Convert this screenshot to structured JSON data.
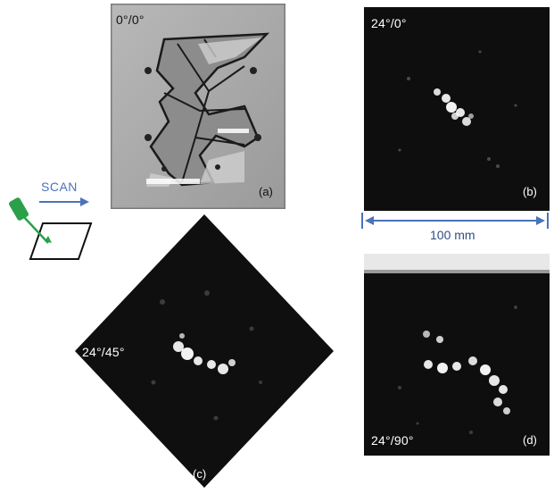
{
  "panels": {
    "a": {
      "angle_label": "0°/0°",
      "sub_label": "(a)"
    },
    "b": {
      "angle_label": "24°/0°",
      "sub_label": "(b)"
    },
    "c": {
      "angle_label": "24°/45°",
      "sub_label": "(c)"
    },
    "d": {
      "angle_label": "24°/90°",
      "sub_label": "(d)"
    }
  },
  "scan": {
    "label": "SCAN"
  },
  "scale_bar": {
    "label": "100 mm"
  },
  "colors": {
    "accent_blue": "#4a73b8",
    "probe_green": "#2aa04a",
    "photo_gray": "#a9a9a9",
    "ultrasound_bg": "#0d0d0d"
  }
}
